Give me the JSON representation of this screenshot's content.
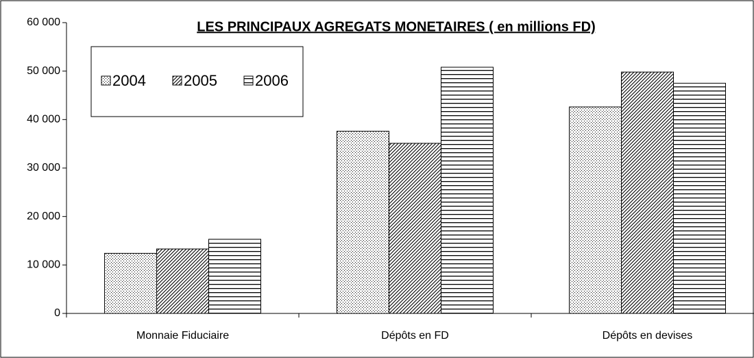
{
  "chart_data": {
    "type": "bar",
    "title": "LES PRINCIPAUX AGREGATS MONETAIRES ( en millions FD)",
    "categories": [
      "Monnaie Fiduciaire",
      "Dépôts en FD",
      "Dépôts en devises"
    ],
    "series": [
      {
        "name": "2004",
        "color": "#000000",
        "pattern": "dots",
        "values": [
          12400,
          37600,
          42600
        ]
      },
      {
        "name": "2005",
        "color": "#000000",
        "pattern": "diagonal",
        "values": [
          13300,
          35100,
          49800
        ]
      },
      {
        "name": "2006",
        "color": "#000000",
        "pattern": "horizontal",
        "values": [
          15300,
          50800,
          47500
        ]
      }
    ],
    "ylim": [
      0,
      60000
    ],
    "yticks": [
      0,
      {
        "value": 10000,
        "label": "10 000"
      },
      {
        "value": 20000,
        "label": "20 000"
      },
      {
        "value": 30000,
        "label": "30 000"
      },
      {
        "value": 40000,
        "label": "40 000"
      },
      {
        "value": 50000,
        "label": "50 000"
      },
      {
        "value": 60000,
        "label": "60 000"
      }
    ],
    "legend": "top-left"
  }
}
